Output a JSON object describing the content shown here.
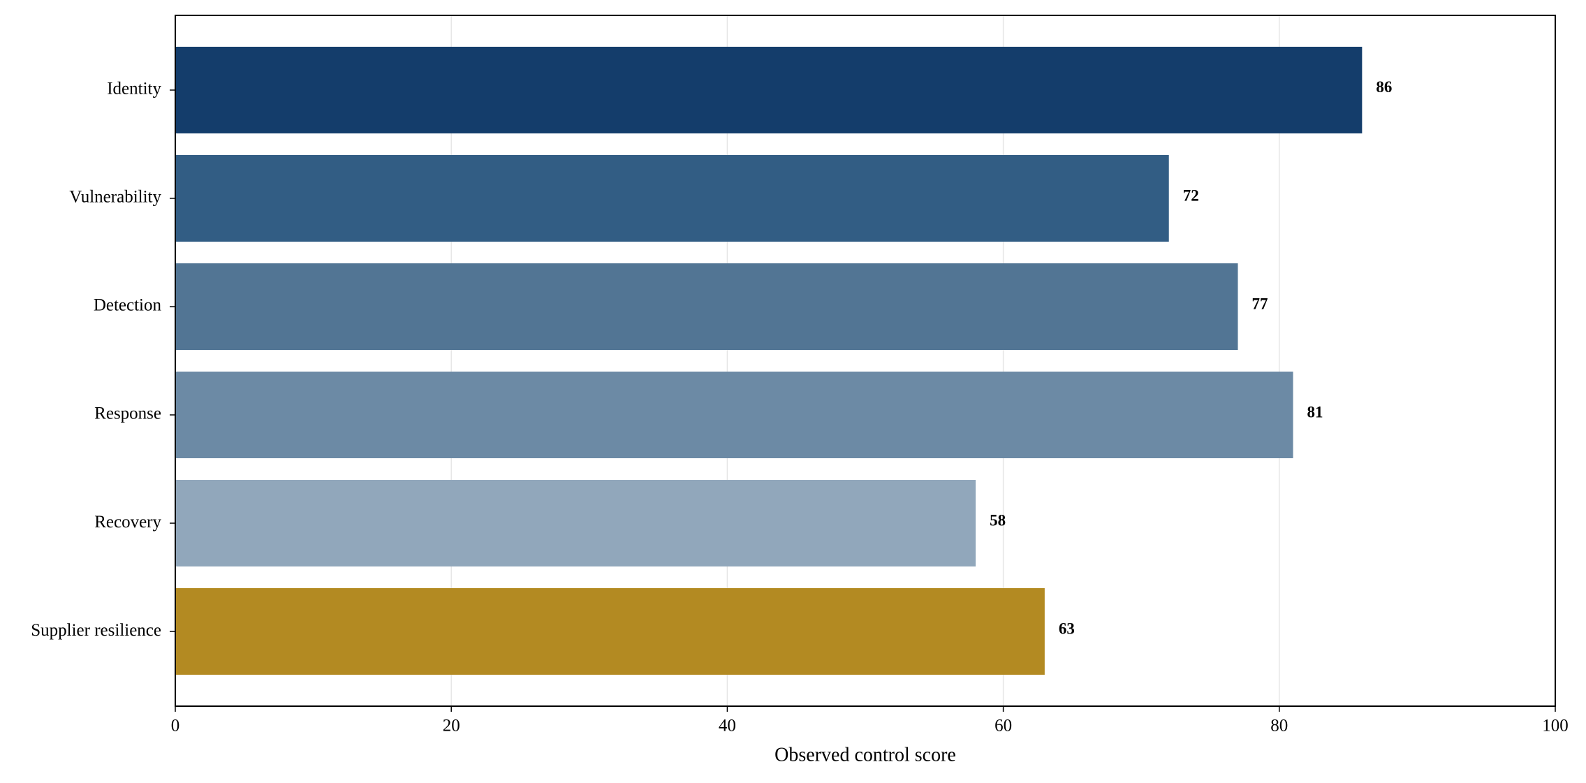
{
  "chart_data": {
    "type": "barh",
    "categories": [
      "Identity",
      "Vulnerability",
      "Detection",
      "Response",
      "Recovery",
      "Supplier resilience"
    ],
    "values": [
      86,
      72,
      77,
      81,
      58,
      63
    ],
    "colors": [
      "#143d6b",
      "#325d84",
      "#527594",
      "#6c8aa5",
      "#91a7bb",
      "#b38a22"
    ],
    "xlabel": "Observed control score",
    "xlim": [
      0,
      100
    ],
    "xticks": [
      0,
      20,
      40,
      60,
      80,
      100
    ],
    "grid": true
  }
}
